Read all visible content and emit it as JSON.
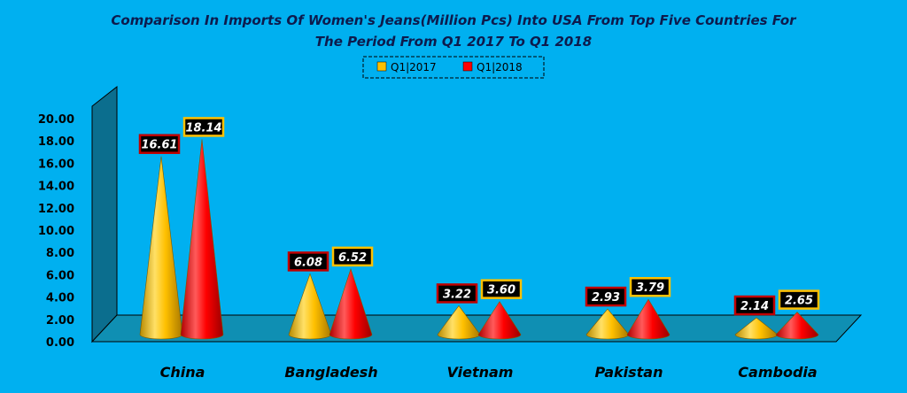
{
  "chart_data": {
    "type": "bar",
    "title_line1": "Comparison In Imports Of Women's Jeans(Million Pcs) Into USA From Top Five Countries For",
    "title_line2": "The Period  From Q1 2017 To Q1 2018",
    "categories": [
      "China",
      "Bangladesh",
      "Vietnam",
      "Pakistan",
      "Cambodia"
    ],
    "series": [
      {
        "name": "Q1|2017",
        "values": [
          16.61,
          6.08,
          3.22,
          2.93,
          2.14
        ],
        "color": "#ffc000",
        "label_border": "#c00000"
      },
      {
        "name": "Q1|2018",
        "values": [
          18.14,
          6.52,
          3.6,
          3.79,
          2.65
        ],
        "color": "#ff0000",
        "label_border": "#ffc000"
      }
    ],
    "data_labels": [
      [
        "16.61",
        "6.08",
        "3.22",
        "2.93",
        "2.14"
      ],
      [
        "18.14",
        "6.52",
        "3.60",
        "3.79",
        "2.65"
      ]
    ],
    "y_ticks": [
      "0.00",
      "2.00",
      "4.00",
      "6.00",
      "8.00",
      "10.00",
      "12.00",
      "14.00",
      "16.00",
      "18.00",
      "20.00"
    ],
    "ylim": [
      0,
      20
    ],
    "legend_position": "top-center",
    "colors": {
      "background": "#00b0f0",
      "wall": "#0b6e8e",
      "floor": "#0f8fb3",
      "label_bg": "#000000"
    }
  }
}
